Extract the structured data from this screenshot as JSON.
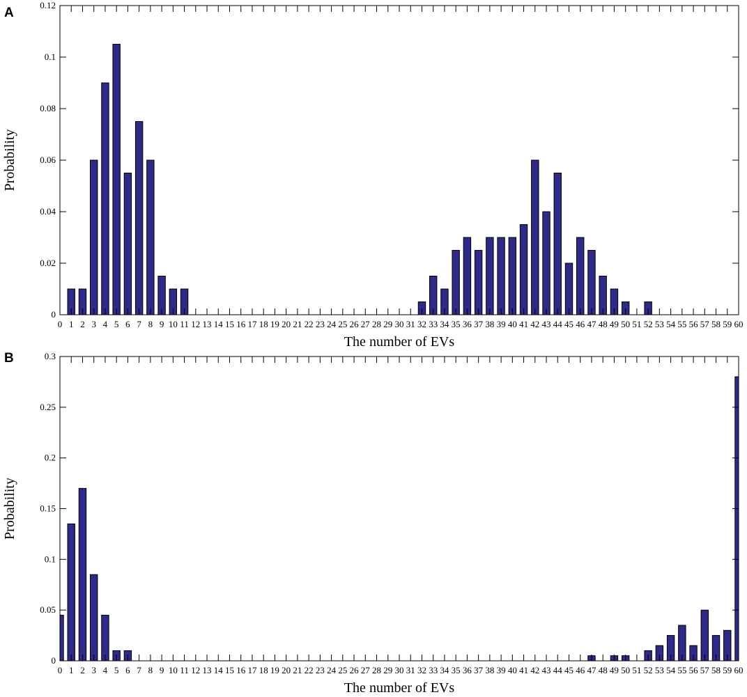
{
  "chart_data": [
    {
      "panel": "A",
      "type": "bar",
      "xlabel": "The number of EVs",
      "ylabel": "Probability",
      "xlim": [
        0,
        60
      ],
      "ylim": [
        0,
        0.12
      ],
      "yticks": [
        0,
        0.02,
        0.04,
        0.06,
        0.08,
        0.1,
        0.12
      ],
      "ytick_labels": [
        "0",
        "0.02",
        "0.04",
        "0.06",
        "0.08",
        "0.1",
        "0.12"
      ],
      "bar_color": "#2e2a8a",
      "x": [
        0,
        1,
        2,
        3,
        4,
        5,
        6,
        7,
        8,
        9,
        10,
        11,
        12,
        13,
        14,
        15,
        16,
        17,
        18,
        19,
        20,
        21,
        22,
        23,
        24,
        25,
        26,
        27,
        28,
        29,
        30,
        31,
        32,
        33,
        34,
        35,
        36,
        37,
        38,
        39,
        40,
        41,
        42,
        43,
        44,
        45,
        46,
        47,
        48,
        49,
        50,
        51,
        52,
        53,
        54,
        55,
        56,
        57,
        58,
        59,
        60
      ],
      "values": [
        0,
        0.01,
        0.01,
        0.06,
        0.09,
        0.105,
        0.055,
        0.075,
        0.06,
        0.015,
        0.01,
        0.01,
        0,
        0,
        0,
        0,
        0,
        0,
        0,
        0,
        0,
        0,
        0,
        0,
        0,
        0,
        0,
        0,
        0,
        0,
        0,
        0,
        0.005,
        0.015,
        0.01,
        0.025,
        0.03,
        0.025,
        0.03,
        0.03,
        0.03,
        0.035,
        0.06,
        0.04,
        0.055,
        0.02,
        0.03,
        0.025,
        0.015,
        0.01,
        0.005,
        0,
        0.005,
        0,
        0,
        0,
        0,
        0,
        0,
        0,
        0
      ]
    },
    {
      "panel": "B",
      "type": "bar",
      "xlabel": "The number of EVs",
      "ylabel": "Probability",
      "xlim": [
        0,
        60
      ],
      "ylim": [
        0,
        0.3
      ],
      "yticks": [
        0,
        0.05,
        0.1,
        0.15,
        0.2,
        0.25,
        0.3
      ],
      "ytick_labels": [
        "0",
        "0.05",
        "0.1",
        "0.15",
        "0.2",
        "0.25",
        "0.3"
      ],
      "bar_color": "#2e2a8a",
      "x": [
        0,
        1,
        2,
        3,
        4,
        5,
        6,
        7,
        8,
        9,
        10,
        11,
        12,
        13,
        14,
        15,
        16,
        17,
        18,
        19,
        20,
        21,
        22,
        23,
        24,
        25,
        26,
        27,
        28,
        29,
        30,
        31,
        32,
        33,
        34,
        35,
        36,
        37,
        38,
        39,
        40,
        41,
        42,
        43,
        44,
        45,
        46,
        47,
        48,
        49,
        50,
        51,
        52,
        53,
        54,
        55,
        56,
        57,
        58,
        59,
        60
      ],
      "values": [
        0.045,
        0.135,
        0.17,
        0.085,
        0.045,
        0.01,
        0.01,
        0,
        0,
        0,
        0,
        0,
        0,
        0,
        0,
        0,
        0,
        0,
        0,
        0,
        0,
        0,
        0,
        0,
        0,
        0,
        0,
        0,
        0,
        0,
        0,
        0,
        0,
        0,
        0,
        0,
        0,
        0,
        0,
        0,
        0,
        0,
        0,
        0,
        0,
        0,
        0,
        0.005,
        0,
        0.005,
        0.005,
        0,
        0.01,
        0.015,
        0.025,
        0.035,
        0.015,
        0.05,
        0.025,
        0.03,
        0.28
      ]
    }
  ]
}
